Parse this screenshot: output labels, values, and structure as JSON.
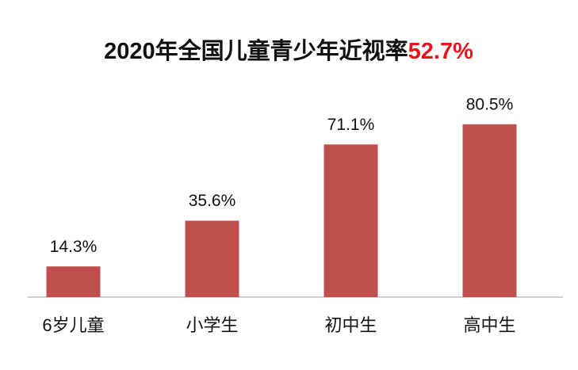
{
  "chart_data": {
    "type": "bar",
    "title": "2020年全国儿童青少年近视率",
    "title_highlight": "52.7%",
    "title_highlight_color": "#e8141b",
    "categories": [
      "6岁儿童",
      "小学生",
      "初中生",
      "高中生"
    ],
    "values": [
      14.3,
      35.6,
      71.1,
      80.5
    ],
    "value_labels": [
      "14.3%",
      "35.6%",
      "71.1%",
      "80.5%"
    ],
    "color": "#c0504d"
  }
}
